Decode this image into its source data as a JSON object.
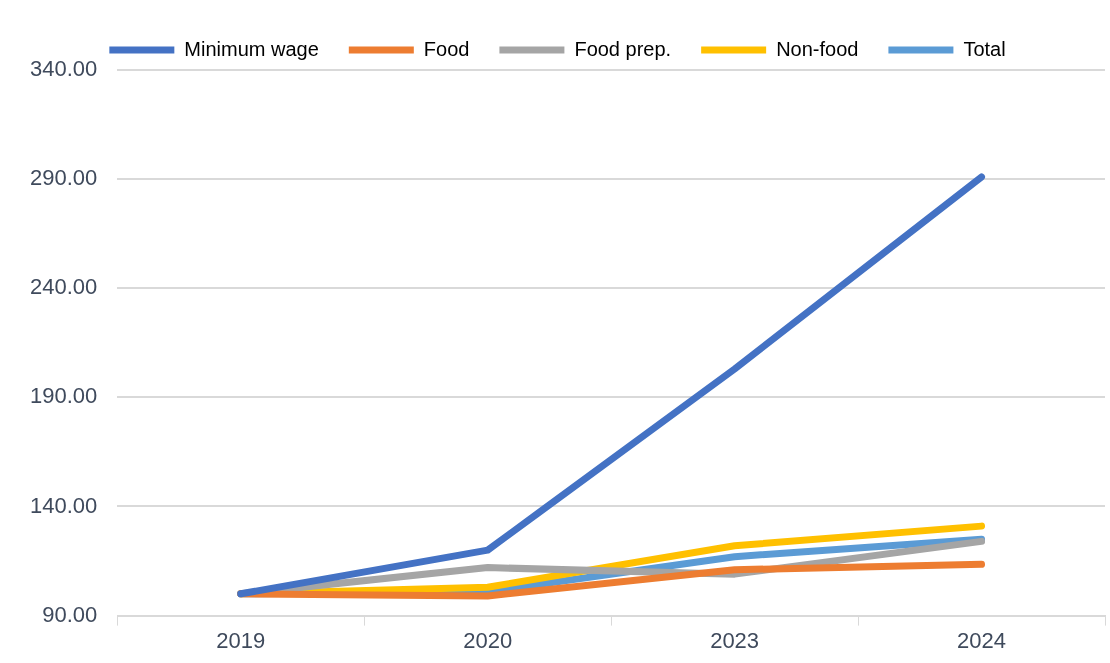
{
  "chart_data": {
    "type": "line",
    "categories": [
      "2019",
      "2020",
      "2023",
      "2024"
    ],
    "series": [
      {
        "name": "Minimum wage",
        "color": "#4472c4",
        "values": [
          100,
          120,
          203,
          291
        ]
      },
      {
        "name": "Food",
        "color": "#ed7d31",
        "values": [
          100,
          99,
          111,
          113.5
        ]
      },
      {
        "name": "Food prep.",
        "color": "#a5a5a5",
        "values": [
          100,
          112,
          109,
          124
        ]
      },
      {
        "name": "Non-food",
        "color": "#ffc000",
        "values": [
          100,
          103,
          122,
          131
        ]
      },
      {
        "name": "Total",
        "color": "#5b9bd5",
        "values": [
          100,
          101,
          117,
          125
        ]
      }
    ],
    "ylim": [
      90,
      340
    ],
    "yticks": [
      {
        "value": 90,
        "label": "90.00"
      },
      {
        "value": 140,
        "label": "140.00"
      },
      {
        "value": 190,
        "label": "190.00"
      },
      {
        "value": 240,
        "label": "240.00"
      },
      {
        "value": 290,
        "label": "290.00"
      },
      {
        "value": 340,
        "label": "340.00"
      }
    ],
    "grid": "y",
    "legend": "top",
    "marker": "none",
    "line_style": "solid"
  }
}
